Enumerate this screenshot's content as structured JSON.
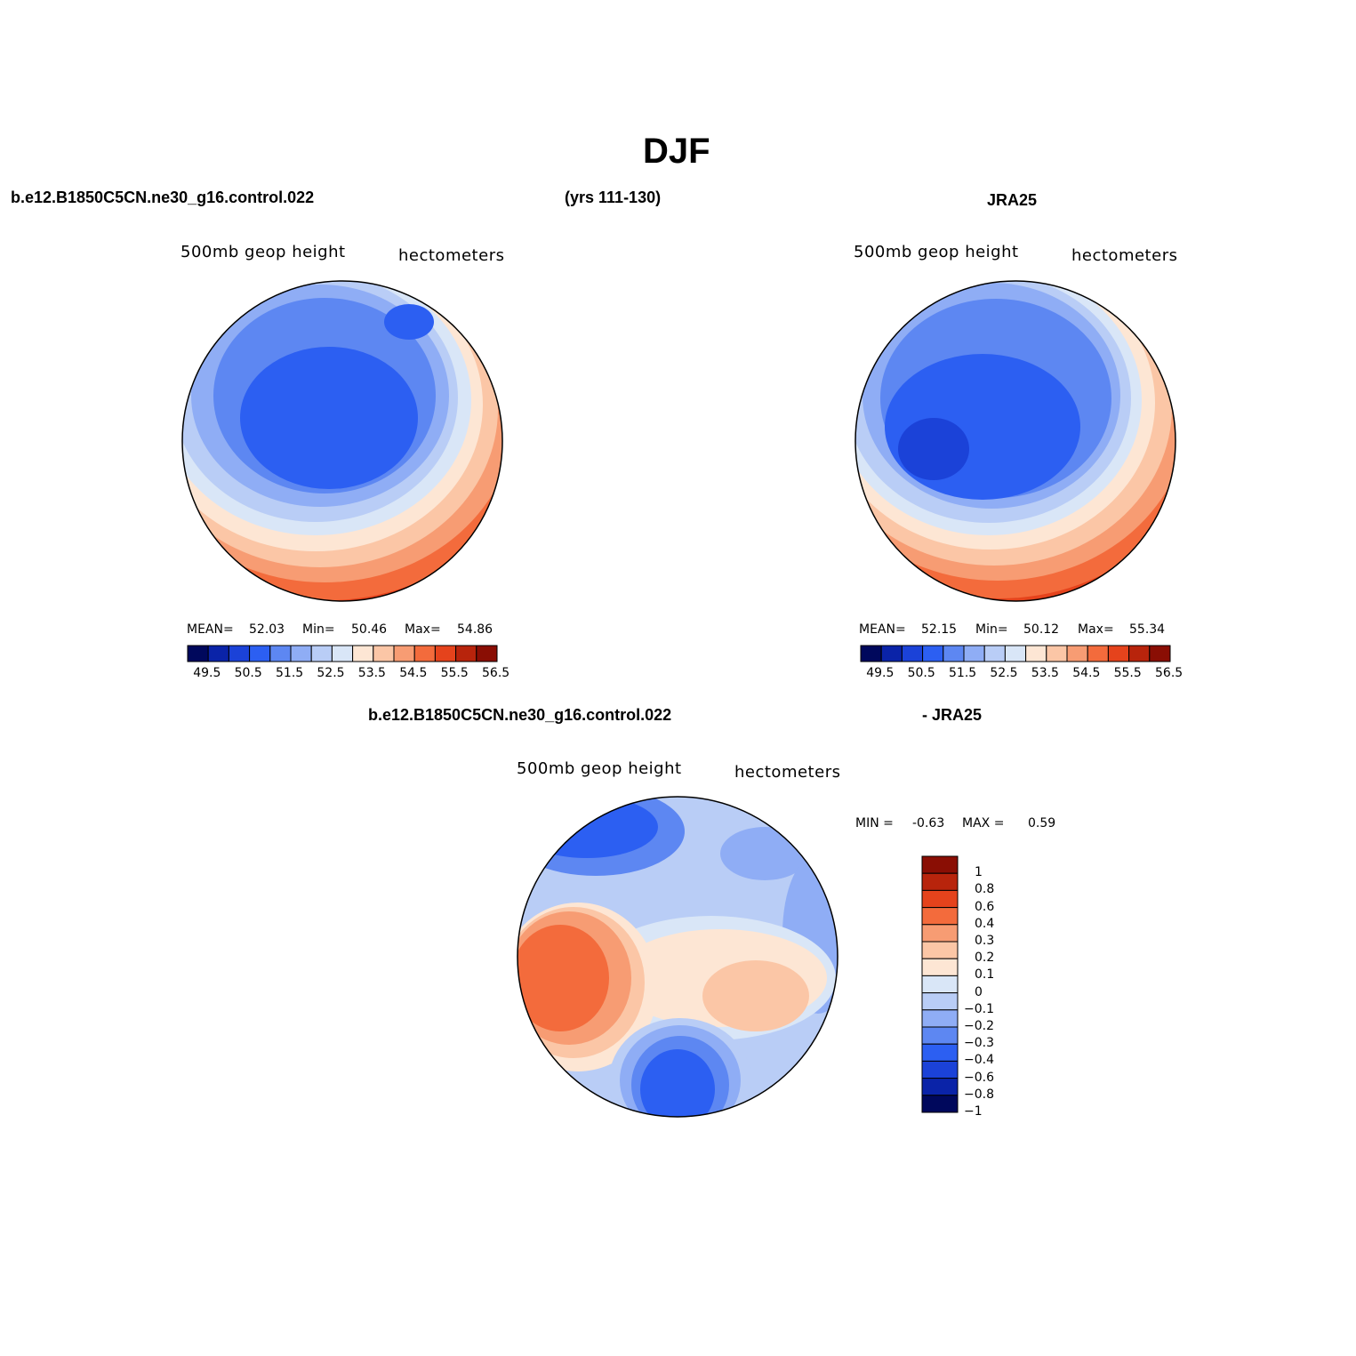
{
  "title": "DJF",
  "panels": {
    "model": {
      "case_name": "b.e12.B1850C5CN.ne30_g16.control.022",
      "years": "(yrs 111-130)",
      "variable": "500mb geop height",
      "units": "hectometers",
      "stats": {
        "mean_label": "MEAN=",
        "mean": "52.03",
        "min_label": "Min=",
        "min": "50.46",
        "max_label": "Max=",
        "max": "54.86"
      }
    },
    "obs": {
      "name": "JRA25",
      "variable": "500mb geop height",
      "units": "hectometers",
      "stats": {
        "mean_label": "MEAN=",
        "mean": "52.15",
        "min_label": "Min=",
        "min": "50.12",
        "max_label": "Max=",
        "max": "55.34"
      }
    },
    "diff": {
      "case_name": "b.e12.B1850C5CN.ne30_g16.control.022",
      "minus_label": "- JRA25",
      "variable": "500mb geop height",
      "units": "hectometers",
      "stats": {
        "min_label": "MIN =",
        "min": "-0.63",
        "max_label": "MAX =",
        "max": "0.59"
      }
    }
  },
  "colorbar_abs": {
    "ticks": [
      "49.5",
      "50.5",
      "51.5",
      "52.5",
      "53.5",
      "54.5",
      "55.5",
      "56.5"
    ],
    "colors": [
      "#00085c",
      "#0a23a8",
      "#1b42d8",
      "#2c5ff2",
      "#5d87f2",
      "#8fadf5",
      "#b9cdf6",
      "#d9e6f7",
      "#fde6d4",
      "#fbc6a6",
      "#f79c73",
      "#f36b3c",
      "#e5431c",
      "#b8240c",
      "#8a0e04"
    ]
  },
  "colorbar_diff": {
    "ticks": [
      "1",
      "0.8",
      "0.6",
      "0.4",
      "0.3",
      "0.2",
      "0.1",
      "0",
      "-0.1",
      "-0.2",
      "-0.3",
      "-0.4",
      "-0.6",
      "-0.8",
      "-1"
    ],
    "colors": [
      "#8a0e04",
      "#b8240c",
      "#e5431c",
      "#f36b3c",
      "#f79c73",
      "#fbc6a6",
      "#fde6d4",
      "#d9e6f7",
      "#b9cdf6",
      "#8fadf5",
      "#5d87f2",
      "#2c5ff2",
      "#1b42d8",
      "#0a23a8",
      "#00085c"
    ]
  }
}
